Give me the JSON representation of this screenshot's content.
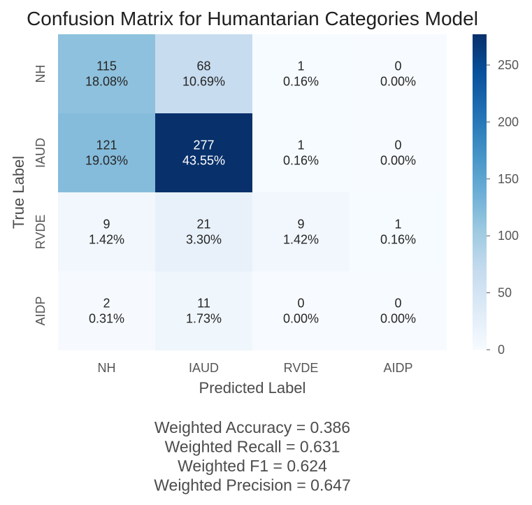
{
  "chart_data": {
    "type": "heatmap",
    "title": "Confusion Matrix for Humantarian Categories Model",
    "xlabel": "Predicted Label",
    "ylabel": "True Label",
    "x_categories": [
      "NH",
      "IAUD",
      "RVDE",
      "AIDP"
    ],
    "y_categories": [
      "NH",
      "IAUD",
      "RVDE",
      "AIDP"
    ],
    "counts": [
      [
        115,
        68,
        1,
        0
      ],
      [
        121,
        277,
        1,
        0
      ],
      [
        9,
        21,
        9,
        1
      ],
      [
        2,
        11,
        0,
        0
      ]
    ],
    "percentages": [
      [
        "18.08%",
        "10.69%",
        "0.16%",
        "0.00%"
      ],
      [
        "19.03%",
        "43.55%",
        "0.16%",
        "0.00%"
      ],
      [
        "1.42%",
        "3.30%",
        "1.42%",
        "0.16%"
      ],
      [
        "0.31%",
        "1.73%",
        "0.00%",
        "0.00%"
      ]
    ],
    "colorbar": {
      "range": [
        0,
        277
      ],
      "ticks": [
        0,
        50,
        100,
        150,
        200,
        250
      ]
    },
    "colormap": [
      "#f7fbff",
      "#deebf7",
      "#c6dbef",
      "#9ecae1",
      "#6baed6",
      "#4292c6",
      "#2171b5",
      "#08519c",
      "#08306b"
    ],
    "metrics": [
      "Weighted Accuracy = 0.386",
      "Weighted Recall = 0.631",
      "Weighted F1 = 0.624",
      "Weighted Precision = 0.647"
    ]
  }
}
